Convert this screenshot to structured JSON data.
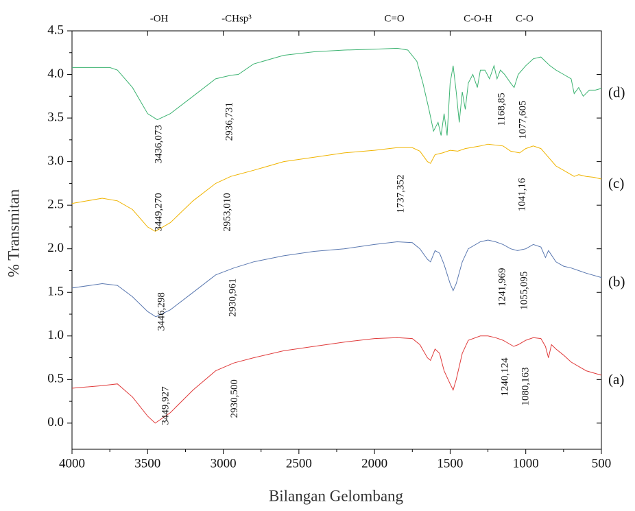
{
  "chart_data": {
    "type": "line",
    "x_label": "Bilangan Gelombang",
    "y_label": "% Transmitan",
    "xlim": [
      4000,
      500
    ],
    "ylim": [
      -0.3,
      4.5
    ],
    "xticks": [
      4000,
      3500,
      3000,
      2500,
      2000,
      1500,
      1000,
      500
    ],
    "yticks": [
      {
        "value": 0,
        "label": "0.0"
      },
      0.5,
      {
        "value": 1,
        "label": "1.0"
      },
      1.5,
      {
        "value": 2,
        "label": "2.0"
      },
      2.5,
      {
        "value": 3,
        "label": "3.0"
      },
      3.5,
      {
        "value": 4,
        "label": "4.0"
      },
      4.5
    ],
    "series": [
      {
        "name": "(d)",
        "color": "#3cb371",
        "x": [
          4000,
          3750,
          3700,
          3600,
          3500,
          3436,
          3350,
          3200,
          3050,
          2950,
          2900,
          2800,
          2600,
          2400,
          2200,
          2000,
          1850,
          1780,
          1720,
          1680,
          1640,
          1610,
          1580,
          1560,
          1540,
          1520,
          1500,
          1480,
          1460,
          1440,
          1420,
          1400,
          1380,
          1350,
          1320,
          1300,
          1270,
          1240,
          1210,
          1190,
          1168,
          1140,
          1100,
          1077,
          1050,
          1000,
          950,
          900,
          870,
          840,
          800,
          750,
          700,
          680,
          650,
          620,
          580,
          540,
          500
        ],
        "values": [
          4.08,
          4.08,
          4.05,
          3.85,
          3.55,
          3.48,
          3.55,
          3.75,
          3.95,
          3.99,
          4.0,
          4.12,
          4.22,
          4.26,
          4.28,
          4.29,
          4.3,
          4.28,
          4.15,
          3.9,
          3.6,
          3.35,
          3.45,
          3.3,
          3.55,
          3.3,
          3.9,
          4.1,
          3.8,
          3.45,
          3.8,
          3.6,
          3.9,
          4.0,
          3.85,
          4.05,
          4.05,
          3.95,
          4.1,
          3.95,
          4.05,
          4.0,
          3.9,
          3.85,
          4.0,
          4.1,
          4.18,
          4.2,
          4.15,
          4.1,
          4.05,
          4.0,
          3.95,
          3.78,
          3.85,
          3.75,
          3.82,
          3.82,
          3.84
        ]
      },
      {
        "name": "(c)",
        "color": "#f0b400",
        "x": [
          4000,
          3800,
          3700,
          3600,
          3500,
          3449,
          3350,
          3200,
          3050,
          2950,
          2800,
          2600,
          2400,
          2200,
          2000,
          1850,
          1750,
          1700,
          1650,
          1630,
          1600,
          1550,
          1500,
          1450,
          1400,
          1300,
          1250,
          1150,
          1100,
          1041,
          1000,
          950,
          900,
          850,
          800,
          750,
          700,
          680,
          650,
          600,
          550,
          500
        ],
        "values": [
          2.52,
          2.58,
          2.55,
          2.45,
          2.25,
          2.2,
          2.3,
          2.55,
          2.75,
          2.83,
          2.9,
          3.0,
          3.05,
          3.1,
          3.13,
          3.16,
          3.16,
          3.12,
          3.0,
          2.98,
          3.08,
          3.1,
          3.13,
          3.12,
          3.15,
          3.18,
          3.2,
          3.18,
          3.12,
          3.1,
          3.15,
          3.18,
          3.15,
          3.05,
          2.95,
          2.9,
          2.85,
          2.83,
          2.85,
          2.83,
          2.82,
          2.8
        ]
      },
      {
        "name": "(b)",
        "color": "#5a78b0",
        "x": [
          4000,
          3800,
          3700,
          3600,
          3500,
          3446,
          3350,
          3200,
          3050,
          2930,
          2800,
          2600,
          2400,
          2200,
          2000,
          1850,
          1750,
          1700,
          1650,
          1630,
          1600,
          1570,
          1540,
          1500,
          1480,
          1460,
          1420,
          1380,
          1300,
          1250,
          1200,
          1150,
          1100,
          1055,
          1000,
          950,
          900,
          870,
          850,
          800,
          750,
          700,
          650,
          600,
          500
        ],
        "values": [
          1.55,
          1.6,
          1.58,
          1.45,
          1.28,
          1.22,
          1.3,
          1.5,
          1.7,
          1.78,
          1.85,
          1.92,
          1.97,
          2.0,
          2.05,
          2.08,
          2.07,
          2.0,
          1.88,
          1.85,
          1.98,
          1.95,
          1.82,
          1.6,
          1.52,
          1.6,
          1.85,
          2.0,
          2.08,
          2.1,
          2.08,
          2.05,
          2.0,
          1.98,
          2.0,
          2.05,
          2.02,
          1.9,
          1.98,
          1.85,
          1.8,
          1.78,
          1.75,
          1.72,
          1.67
        ]
      },
      {
        "name": "(a)",
        "color": "#e03a3a",
        "x": [
          4000,
          3800,
          3700,
          3600,
          3500,
          3450,
          3350,
          3200,
          3050,
          2930,
          2800,
          2600,
          2400,
          2200,
          2000,
          1850,
          1750,
          1700,
          1650,
          1630,
          1600,
          1570,
          1540,
          1500,
          1480,
          1460,
          1420,
          1380,
          1300,
          1250,
          1200,
          1150,
          1100,
          1080,
          1050,
          1000,
          950,
          900,
          870,
          850,
          830,
          800,
          750,
          700,
          650,
          600,
          500
        ],
        "values": [
          0.4,
          0.43,
          0.45,
          0.3,
          0.08,
          0.0,
          0.12,
          0.38,
          0.6,
          0.69,
          0.75,
          0.83,
          0.88,
          0.93,
          0.97,
          0.98,
          0.97,
          0.9,
          0.75,
          0.72,
          0.85,
          0.8,
          0.6,
          0.45,
          0.38,
          0.5,
          0.8,
          0.95,
          1.0,
          1.0,
          0.98,
          0.95,
          0.9,
          0.88,
          0.9,
          0.95,
          0.98,
          0.97,
          0.88,
          0.75,
          0.9,
          0.85,
          0.78,
          0.7,
          0.65,
          0.6,
          0.55
        ]
      }
    ],
    "group_labels": [
      {
        "text": "-OH",
        "x": 3424
      },
      {
        "text": "-CHsp³",
        "x": 2912
      },
      {
        "text": "C=O",
        "x": 1869
      },
      {
        "text": "C-O-H",
        "x": 1316
      },
      {
        "text": "C-O",
        "x": 1008
      }
    ],
    "annotations": [
      {
        "text": "3436,073",
        "x": 3424,
        "y": 3.2
      },
      {
        "text": "2936,731",
        "x": 2957,
        "y": 3.46
      },
      {
        "text": "1168,85",
        "x": 1157,
        "y": 3.6
      },
      {
        "text": "1077,605",
        "x": 1017,
        "y": 3.48
      },
      {
        "text": "3449,270",
        "x": 3424,
        "y": 2.42
      },
      {
        "text": "2953,010",
        "x": 2971,
        "y": 2.42
      },
      {
        "text": "1737,352",
        "x": 1824,
        "y": 2.63
      },
      {
        "text": "1041,16",
        "x": 1021,
        "y": 2.62
      },
      {
        "text": "3446,298",
        "x": 3406,
        "y": 1.28
      },
      {
        "text": "2930,961",
        "x": 2935,
        "y": 1.44
      },
      {
        "text": "1241,969",
        "x": 1153,
        "y": 1.56
      },
      {
        "text": "1055,095",
        "x": 1008,
        "y": 1.52
      },
      {
        "text": "3449,927",
        "x": 3379,
        "y": 0.2
      },
      {
        "text": "2930,500",
        "x": 2924,
        "y": 0.28
      },
      {
        "text": "1240,124",
        "x": 1135,
        "y": 0.53
      },
      {
        "text": "1080,163",
        "x": 999,
        "y": 0.42
      }
    ]
  }
}
